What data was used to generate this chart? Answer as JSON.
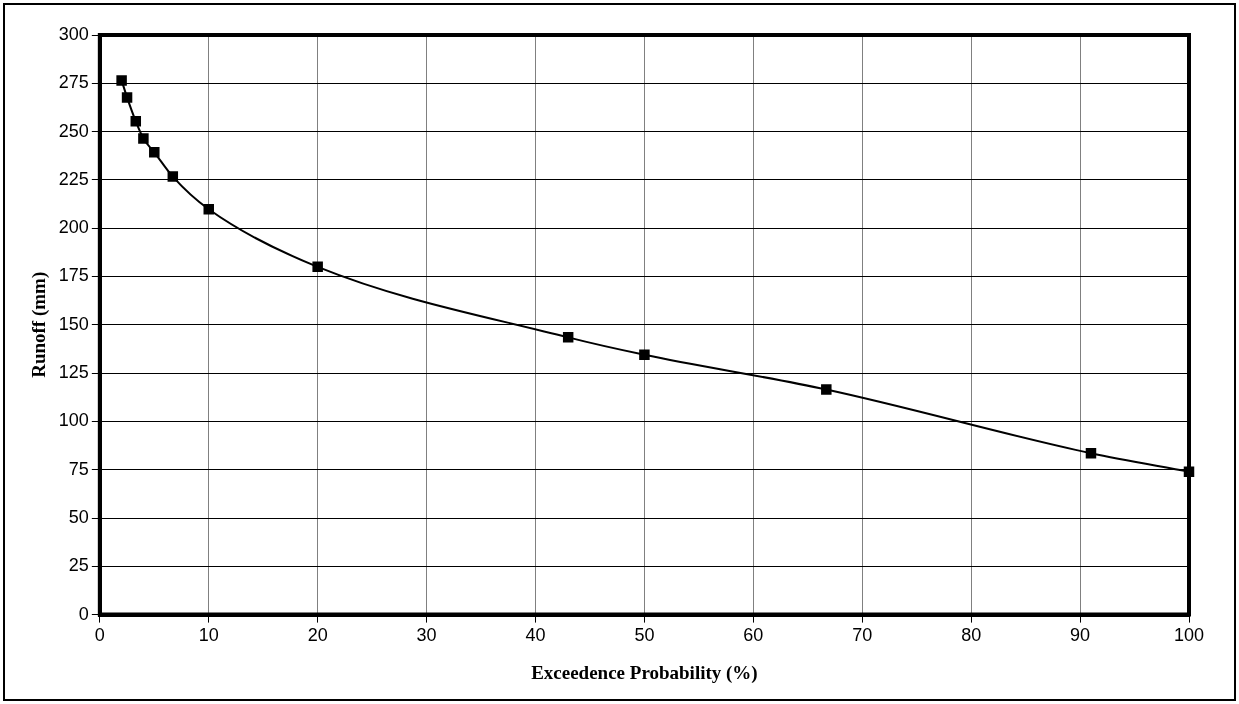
{
  "chart_data": {
    "type": "line",
    "xlabel": "Exceedence Probability (%)",
    "ylabel": "Runoff (mm)",
    "x": [
      2,
      2.5,
      3.3,
      4,
      5,
      6.7,
      10,
      20,
      43,
      50,
      66.7,
      91,
      100
    ],
    "series": [
      {
        "color": "#000000",
        "values": [
          276.5,
          267.7,
          255.3,
          246.4,
          239.3,
          226.7,
          209.8,
          180,
          143.5,
          134.5,
          116.5,
          83.5,
          74
        ]
      }
    ],
    "xlim": [
      0,
      100
    ],
    "xticks": [
      0,
      10,
      20,
      30,
      40,
      50,
      60,
      70,
      80,
      90,
      100
    ],
    "ylim": [
      0,
      300
    ],
    "yticks": [
      0,
      25,
      50,
      75,
      100,
      125,
      150,
      175,
      200,
      225,
      250,
      275,
      300
    ],
    "grid": true,
    "marker": "square",
    "line_style": "solid",
    "legend": false
  }
}
